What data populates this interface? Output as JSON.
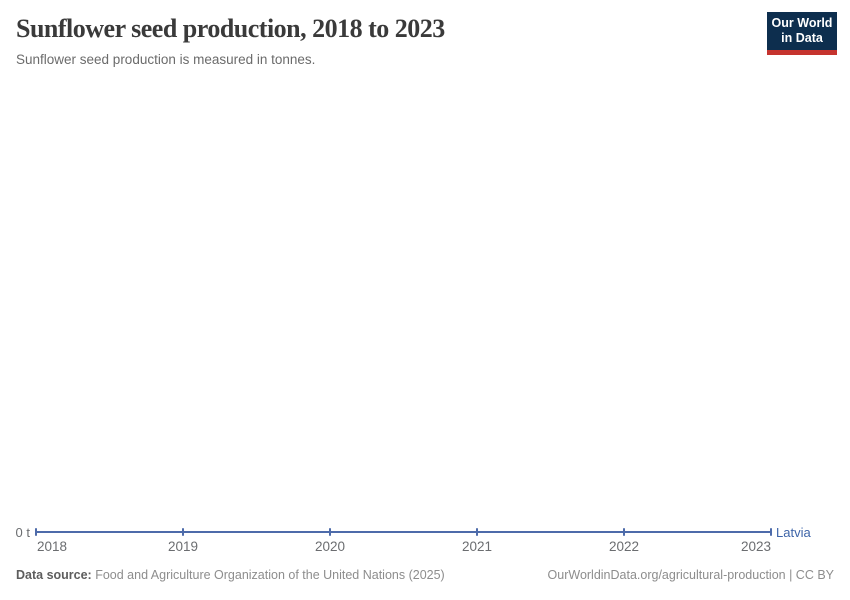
{
  "header": {
    "title": "Sunflower seed production, 2018 to 2023",
    "subtitle": "Sunflower seed production is measured in tonnes.",
    "logo": {
      "line1": "Our World",
      "line2": "in Data"
    }
  },
  "chart_data": {
    "type": "line",
    "title": "Sunflower seed production, 2018 to 2023",
    "subtitle": "Sunflower seed production is measured in tonnes.",
    "x": [
      2018,
      2019,
      2020,
      2021,
      2022,
      2023
    ],
    "x_tick_labels": [
      "2018",
      "2019",
      "2020",
      "2021",
      "2022",
      "2023"
    ],
    "series": [
      {
        "name": "Latvia",
        "values": [
          0,
          0,
          0,
          0,
          0,
          0
        ]
      }
    ],
    "unit": "tonnes",
    "y_axis": {
      "tick_labels": [
        "0 t"
      ],
      "range": [
        0,
        0
      ]
    },
    "grid": false,
    "legend_position": "end-of-line entity label"
  },
  "footer": {
    "source_label": "Data source:",
    "source_text": " Food and Agriculture Organization of the United Nations (2025)",
    "url_text": "OurWorldinData.org/agricultural-production | CC BY"
  },
  "colors": {
    "line": "#4D6BAA",
    "entity_label": "#3D64A8",
    "axis_text": "#6b6d70",
    "title_text": "#3a3a3a",
    "logo_bg": "#0D2E4E",
    "logo_bar": "#C5332E"
  }
}
